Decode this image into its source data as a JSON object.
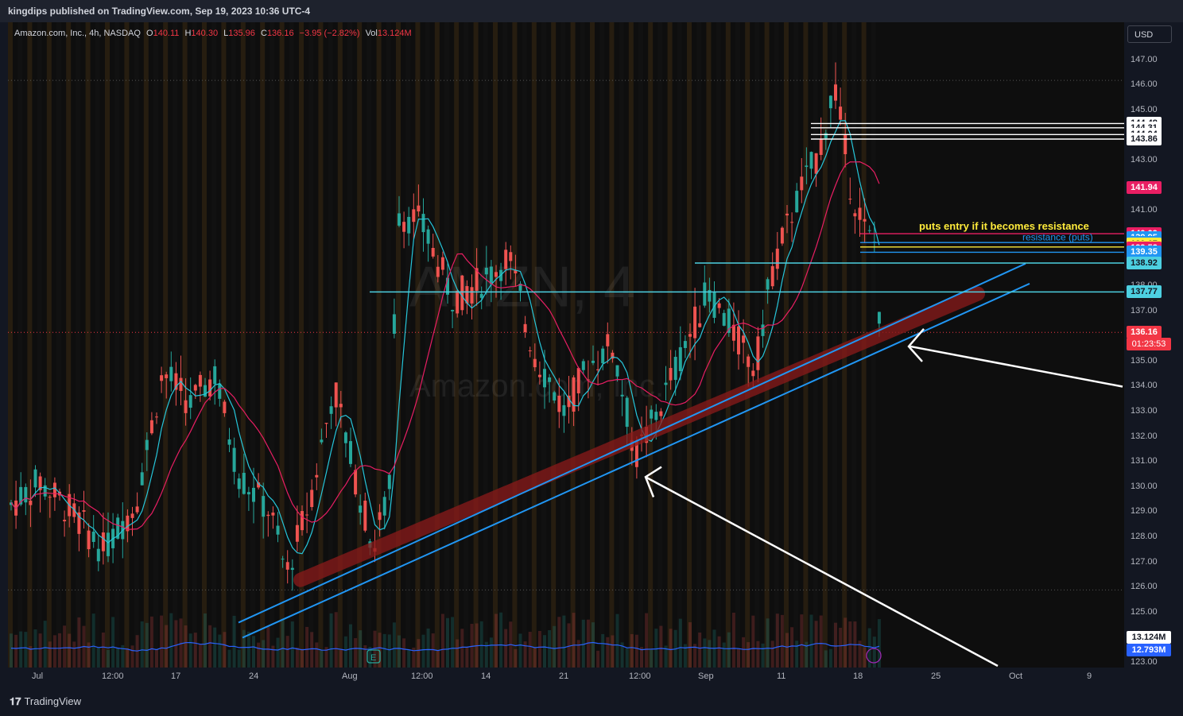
{
  "header": {
    "publisher_line": "kingdips published on TradingView.com, Sep 19, 2023 10:36 UTC-4"
  },
  "legend": {
    "symbol": "Amazon.com, Inc., 4h, NASDAQ",
    "open_label": "O",
    "open": "140.11",
    "high_label": "H",
    "high": "140.30",
    "low_label": "L",
    "low": "135.96",
    "close_label": "C",
    "close": "136.16",
    "change": "−3.95 (−2.82%)",
    "vol_label": "Vol",
    "vol": "13.124M"
  },
  "currency_button": "USD",
  "watermark": {
    "ticker": "AMZN, 4",
    "name": "Amazon.com, Inc."
  },
  "annotations": {
    "puts_entry": "puts entry if it becomes resistance",
    "resistance_puts": "resistance (puts)"
  },
  "footer": {
    "brand": "TradingView",
    "brand_icon": "tradingview-logo-icon"
  },
  "colors": {
    "up": "#26a69a",
    "down": "#ef5350",
    "fast_ma": "#26c6da",
    "slow_ma": "#e91e63",
    "trend": "#2196f3",
    "highlight": "#8b1a1a",
    "cyan_line": "#4dd0e1"
  },
  "chart_data": {
    "type": "candlestick",
    "symbol": "AMZN",
    "timeframe": "4h",
    "exchange": "NASDAQ",
    "y_axis": {
      "range": [
        123,
        147.5
      ],
      "ticks": [
        "147.00",
        "146.00",
        "145.00",
        "144.00",
        "143.00",
        "142.00",
        "141.00",
        "140.00",
        "139.00",
        "138.00",
        "137.00",
        "136.00",
        "135.00",
        "134.00",
        "133.00",
        "132.00",
        "131.00",
        "130.00",
        "129.00",
        "128.00",
        "127.00",
        "126.00",
        "125.00",
        "124.00",
        "123.00"
      ]
    },
    "x_axis": {
      "ticks": [
        "Jul",
        "12:00",
        "17",
        "24",
        "Aug",
        "12:00",
        "14",
        "21",
        "12:00",
        "Sep",
        "11",
        "18",
        "25",
        "Oct",
        "9"
      ]
    },
    "price_levels": [
      {
        "label": "144.48",
        "bg": "#ffffff",
        "fg": "#131722"
      },
      {
        "label": "144.31",
        "bg": "#ffffff",
        "fg": "#131722"
      },
      {
        "label": "144.04",
        "bg": "#ffffff",
        "fg": "#131722"
      },
      {
        "label": "143.86",
        "bg": "#ffffff",
        "fg": "#131722"
      },
      {
        "label": "141.94",
        "bg": "#e91e63",
        "fg": "#ffffff"
      },
      {
        "label": "140.09",
        "bg": "#e91e63",
        "fg": "#ffffff"
      },
      {
        "label": "139.95",
        "bg": "#2196f3",
        "fg": "#ffffff"
      },
      {
        "label": "139.74",
        "bg": "#2196f3",
        "fg": "#ffffff"
      },
      {
        "label": "139.67",
        "bg": "#ffeb3b",
        "fg": "#131722"
      },
      {
        "label": "139.56",
        "bg": "#ffeb3b",
        "fg": "#131722"
      },
      {
        "label": "139.52",
        "bg": "#e91e63",
        "fg": "#ffffff"
      },
      {
        "label": "139.35",
        "bg": "#2196f3",
        "fg": "#ffffff"
      },
      {
        "label": "138.92",
        "bg": "#4dd0e1",
        "fg": "#131722"
      },
      {
        "label": "137.77",
        "bg": "#4dd0e1",
        "fg": "#131722"
      },
      {
        "label": "136.16",
        "bg": "#f23645",
        "fg": "#ffffff"
      }
    ],
    "countdown": "01:23:53",
    "volume_labels": [
      {
        "label": "13.124M",
        "bg": "#ffffff",
        "fg": "#131722"
      },
      {
        "label": "12.793M",
        "bg": "#2962ff",
        "fg": "#ffffff"
      }
    ],
    "last_price": 136.16,
    "session_high": 146.2,
    "session_low": 125.9,
    "trend_support_lower": {
      "start": [
        0.0,
        124.6
      ],
      "end": [
        1.0,
        138.1
      ]
    },
    "trend_support_upper": {
      "start": [
        0.0,
        125.5
      ],
      "end": [
        1.0,
        138.9
      ]
    }
  }
}
